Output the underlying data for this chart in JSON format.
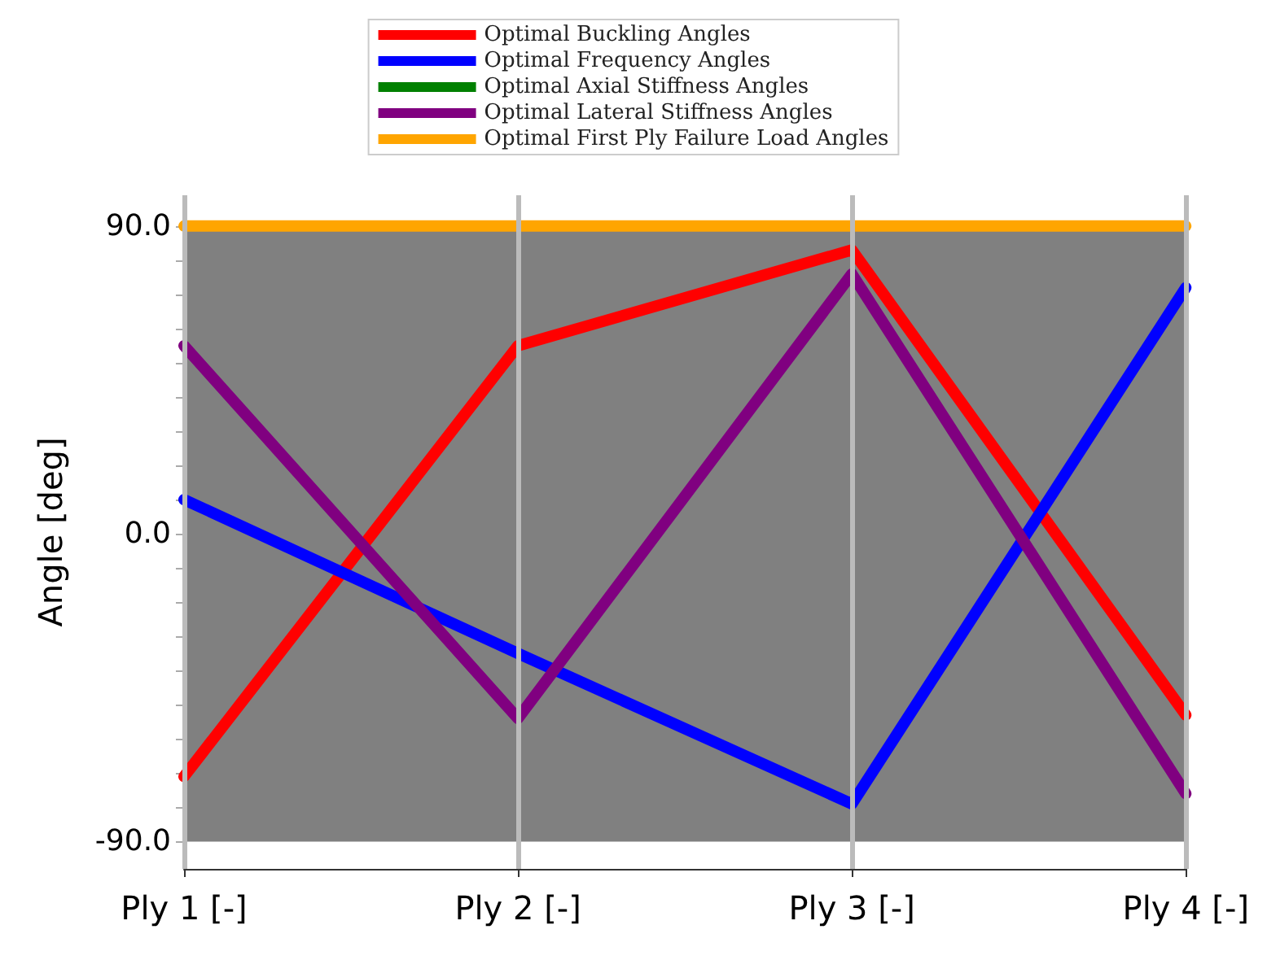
{
  "chart_data": {
    "type": "line",
    "ylabel": "Angle [deg]",
    "categories": [
      "Ply 1 [-]",
      "Ply 2 [-]",
      "Ply 3 [-]",
      "Ply 4 [-]"
    ],
    "series": [
      {
        "name": "Optimal Buckling Angles",
        "color": "#ff0000",
        "values": [
          -71,
          55,
          83,
          -53
        ]
      },
      {
        "name": "Optimal Frequency Angles",
        "color": "#0000ff",
        "values": [
          10,
          -35,
          -79,
          72
        ]
      },
      {
        "name": "Optimal Axial Stiffness Angles",
        "color": "#008000",
        "values": [
          null,
          null,
          null,
          null
        ]
      },
      {
        "name": "Optimal Lateral Stiffness Angles",
        "color": "#800080",
        "values": [
          55,
          -54,
          76,
          -76
        ]
      },
      {
        "name": "Optimal First Ply Failure Load Angles",
        "color": "#ffa500",
        "values": [
          90,
          90,
          90,
          90
        ]
      }
    ],
    "ylim": [
      -98,
      99
    ],
    "yticks": [
      {
        "value": -90,
        "label": "-90.0"
      },
      {
        "value": -80,
        "label": null
      },
      {
        "value": -70,
        "label": null
      },
      {
        "value": -60,
        "label": null
      },
      {
        "value": -50,
        "label": null
      },
      {
        "value": -40,
        "label": null
      },
      {
        "value": -30,
        "label": null
      },
      {
        "value": -20,
        "label": null
      },
      {
        "value": -10,
        "label": null
      },
      {
        "value": 0,
        "label": "0.0"
      },
      {
        "value": 10,
        "label": null
      },
      {
        "value": 20,
        "label": null
      },
      {
        "value": 30,
        "label": null
      },
      {
        "value": 40,
        "label": null
      },
      {
        "value": 50,
        "label": null
      },
      {
        "value": 60,
        "label": null
      },
      {
        "value": 70,
        "label": null
      },
      {
        "value": 80,
        "label": null
      },
      {
        "value": 90,
        "label": "90.0"
      }
    ],
    "bands": [
      {
        "axis": "y",
        "from": -90,
        "to": 90,
        "color": "#808080"
      }
    ],
    "grid": "x",
    "legend": "top",
    "line_style": "solid"
  }
}
